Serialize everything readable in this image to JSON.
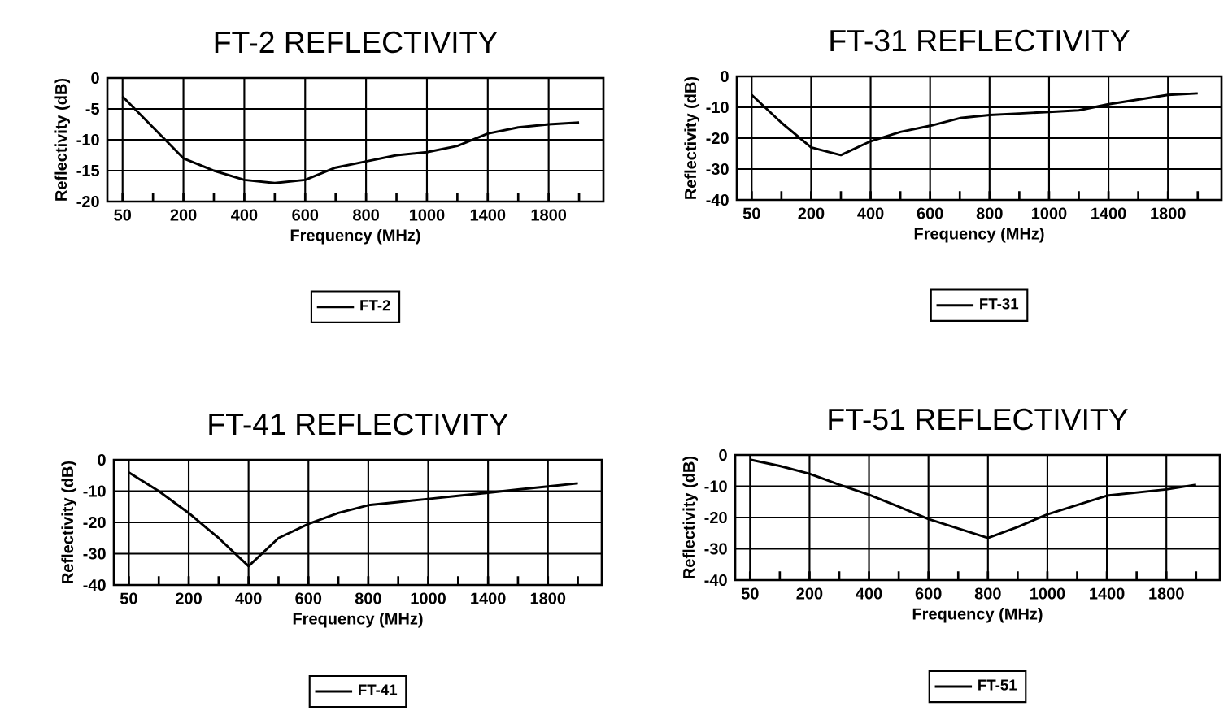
{
  "chart_data": [
    {
      "type": "line",
      "title": "FT-2 REFLECTIVITY",
      "xlabel": "Frequency (MHz)",
      "ylabel": "Reflectivity (dB)",
      "categories": [
        "50",
        null,
        "200",
        null,
        "400",
        null,
        "600",
        null,
        "800",
        null,
        "1000",
        null,
        "1400",
        null,
        "1800",
        null
      ],
      "series": [
        {
          "name": "FT-2",
          "color": "#000000",
          "values": [
            -3,
            -8,
            -13,
            -15,
            -16.5,
            -17,
            -16.5,
            -14.5,
            -13.5,
            -12.5,
            -12,
            -11,
            -9,
            -8,
            -7.5,
            -7.2
          ]
        }
      ],
      "ylim": [
        -20,
        0
      ],
      "yticks": [
        -20,
        -15,
        -10,
        -5,
        0
      ],
      "grid": true,
      "legend": "bottom"
    },
    {
      "type": "line",
      "title": "FT-31 REFLECTIVITY",
      "xlabel": "Frequency (MHz)",
      "ylabel": "Reflectivity (dB)",
      "categories": [
        "50",
        null,
        "200",
        null,
        "400",
        null,
        "600",
        null,
        "800",
        null,
        "1000",
        null,
        "1400",
        null,
        "1800",
        null
      ],
      "series": [
        {
          "name": "FT-31",
          "color": "#000000",
          "values": [
            -6,
            -15,
            -23,
            -25.5,
            -21,
            -18,
            -16,
            -13.5,
            -12.5,
            -12,
            -11.5,
            -11,
            -9,
            -7.5,
            -6,
            -5.5
          ]
        }
      ],
      "ylim": [
        -40,
        0
      ],
      "yticks": [
        -40,
        -30,
        -20,
        -10,
        0
      ],
      "grid": true,
      "legend": "bottom"
    },
    {
      "type": "line",
      "title": "FT-41 REFLECTIVITY",
      "xlabel": "Frequency (MHz)",
      "ylabel": "Reflectivity (dB)",
      "categories": [
        "50",
        null,
        "200",
        null,
        "400",
        null,
        "600",
        null,
        "800",
        null,
        "1000",
        null,
        "1400",
        null,
        "1800",
        null
      ],
      "series": [
        {
          "name": "FT-41",
          "color": "#000000",
          "values": [
            -4,
            -10,
            -17,
            -25,
            -34,
            -25,
            -20.5,
            -17,
            -14.5,
            -13.5,
            -12.5,
            -11.5,
            -10.5,
            -9.5,
            -8.5,
            -7.5
          ]
        }
      ],
      "ylim": [
        -40,
        0
      ],
      "yticks": [
        -40,
        -30,
        -20,
        -10,
        0
      ],
      "grid": true,
      "legend": "bottom"
    },
    {
      "type": "line",
      "title": "FT-51 REFLECTIVITY",
      "xlabel": "Frequency (MHz)",
      "ylabel": "Reflectivity (dB)",
      "categories": [
        "50",
        null,
        "200",
        null,
        "400",
        null,
        "600",
        null,
        "800",
        null,
        "1000",
        null,
        "1400",
        null,
        "1800",
        null
      ],
      "series": [
        {
          "name": "FT-51",
          "color": "#000000",
          "values": [
            -1.5,
            -3.5,
            -6,
            -9.5,
            -12.7,
            -16.5,
            -20.5,
            -23.5,
            -26.5,
            -23,
            -19,
            -16,
            -13,
            -12,
            -11,
            -9.5
          ]
        }
      ],
      "ylim": [
        -40,
        0
      ],
      "yticks": [
        -40,
        -30,
        -20,
        -10,
        0
      ],
      "grid": true,
      "legend": "bottom"
    }
  ]
}
